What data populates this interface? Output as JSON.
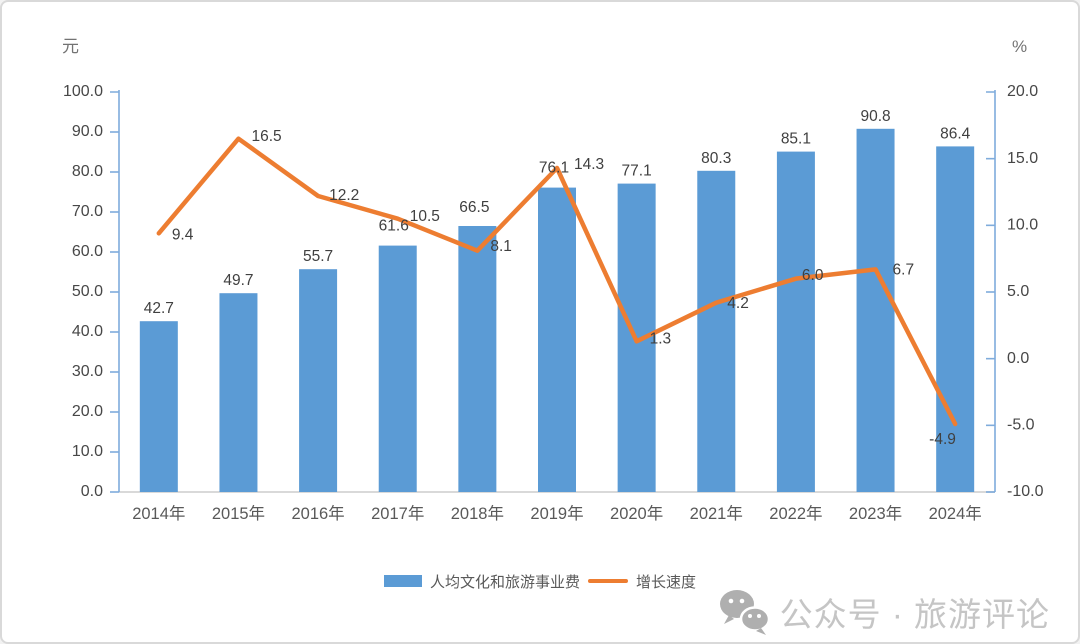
{
  "chart_data": {
    "type": "bar",
    "combo": "bar+line",
    "categories": [
      "2014年",
      "2015年",
      "2016年",
      "2017年",
      "2018年",
      "2019年",
      "2020年",
      "2021年",
      "2022年",
      "2023年",
      "2024年"
    ],
    "series": [
      {
        "name": "人均文化和旅游事业费",
        "chart_type": "bar",
        "axis": "left",
        "color": "#5B9BD5",
        "values": [
          42.7,
          49.7,
          55.7,
          61.6,
          66.5,
          76.1,
          77.1,
          80.3,
          85.1,
          90.8,
          86.4
        ]
      },
      {
        "name": "增长速度",
        "chart_type": "line",
        "axis": "right",
        "color": "#ED7D31",
        "values": [
          9.4,
          16.5,
          12.2,
          10.5,
          8.1,
          14.3,
          1.3,
          4.2,
          6.0,
          6.7,
          -4.9
        ]
      }
    ],
    "left_axis": {
      "title": "元",
      "min": 0,
      "max": 100,
      "step": 10
    },
    "right_axis": {
      "title": "%",
      "min": -10,
      "max": 20,
      "step": 5
    },
    "grid": false,
    "data_labels": true,
    "legend_position": "bottom-center",
    "label_offsets": {
      "bar": [
        [
          0,
          0
        ],
        [
          0,
          0
        ],
        [
          0,
          0
        ],
        [
          -4,
          -7
        ],
        [
          -3,
          -6
        ],
        [
          -3,
          -7
        ],
        [
          0,
          0
        ],
        [
          0,
          0
        ],
        [
          0,
          0
        ],
        [
          0,
          0
        ],
        [
          0,
          0
        ]
      ],
      "line": [
        [
          13,
          2
        ],
        [
          13,
          -2
        ],
        [
          11,
          0
        ],
        [
          12,
          -2
        ],
        [
          13,
          -4
        ],
        [
          17,
          -3
        ],
        [
          13,
          -2
        ],
        [
          11,
          1
        ],
        [
          6,
          -3
        ],
        [
          17,
          1
        ],
        [
          -26,
          16
        ]
      ]
    }
  },
  "footer": {
    "brand_text": "公众号 · 旅游评论"
  },
  "colors": {
    "bar": "#5B9BD5",
    "line": "#ED7D31",
    "value_axis": "#7FACDC",
    "baseline": "#D9D9D9",
    "tick_text": "#474747",
    "category_text": "#595959",
    "data_label": "#404040",
    "footer_gray": "#B5B5B5"
  }
}
